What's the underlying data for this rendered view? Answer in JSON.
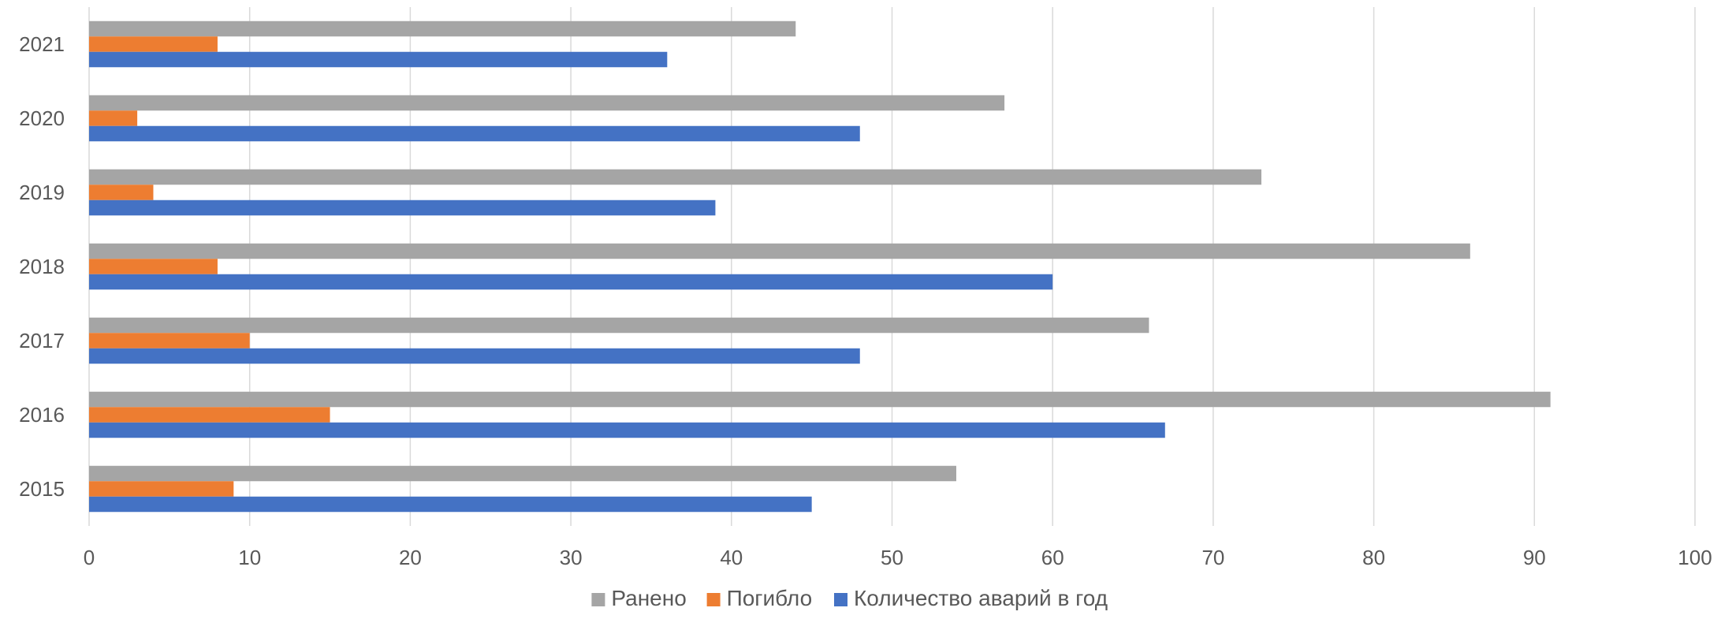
{
  "chart_data": {
    "type": "bar",
    "orientation": "horizontal",
    "categories": [
      "2015",
      "2016",
      "2017",
      "2018",
      "2019",
      "2020",
      "2021"
    ],
    "series": [
      {
        "name": "Ранено",
        "color": "#a5a5a5",
        "values": [
          54,
          91,
          66,
          86,
          73,
          57,
          44
        ]
      },
      {
        "name": "Погибло",
        "color": "#ed7d31",
        "values": [
          9,
          15,
          10,
          8,
          4,
          3,
          8
        ]
      },
      {
        "name": "Количество аварий в год",
        "color": "#4472c4",
        "values": [
          45,
          67,
          48,
          60,
          39,
          48,
          36
        ]
      }
    ],
    "xlim": [
      0,
      100
    ],
    "xticks": [
      0,
      10,
      20,
      30,
      40,
      50,
      60,
      70,
      80,
      90,
      100
    ],
    "grid": "vertical",
    "legend": "bottom",
    "title": "",
    "xlabel": "",
    "ylabel": ""
  }
}
